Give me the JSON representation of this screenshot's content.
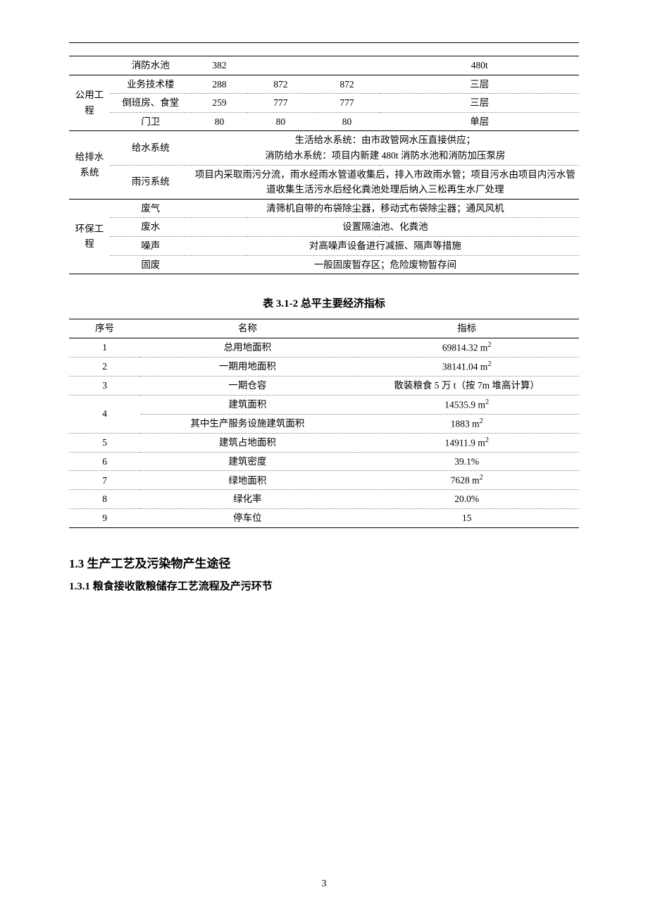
{
  "table1": {
    "rows": [
      {
        "cat": "",
        "catRowspan": 1,
        "name": "消防水池",
        "v1": "382",
        "v2": "",
        "v3": "",
        "desc": "480t",
        "groupTop": false,
        "lastInGroup": true
      },
      {
        "cat": "公用工程",
        "catRowspan": 3,
        "name": "业务技术楼",
        "v1": "288",
        "v2": "872",
        "v3": "872",
        "desc": "三层",
        "groupTop": true,
        "lastInGroup": false
      },
      {
        "cat": null,
        "name": "倒班房、食堂",
        "v1": "259",
        "v2": "777",
        "v3": "777",
        "desc": "三层",
        "groupTop": false,
        "lastInGroup": false
      },
      {
        "cat": null,
        "name": "门卫",
        "v1": "80",
        "v2": "80",
        "v3": "80",
        "desc": "单层",
        "groupTop": false,
        "lastInGroup": true
      },
      {
        "cat": "给排水系统",
        "catRowspan": 2,
        "name": "给水系统",
        "span": true,
        "spanText": "生活给水系统：由市政管网水压直接供应；\n消防给水系统：项目内新建 480t 消防水池和消防加压泵房",
        "groupTop": true,
        "lastInGroup": false
      },
      {
        "cat": null,
        "name": "雨污系统",
        "span": true,
        "spanText": "项目内采取雨污分流，雨水经雨水管道收集后，排入市政雨水管；项目污水由项目内污水管道收集生活污水后经化粪池处理后纳入三松再生水厂处理",
        "groupTop": false,
        "lastInGroup": true
      },
      {
        "cat": "环保工程",
        "catRowspan": 4,
        "name": "废气",
        "span": true,
        "spanText": "清筛机自带的布袋除尘器，移动式布袋除尘器；通风风机",
        "groupTop": true,
        "lastInGroup": false
      },
      {
        "cat": null,
        "name": "废水",
        "span": true,
        "spanText": "设置隔油池、化粪池",
        "groupTop": false,
        "lastInGroup": false
      },
      {
        "cat": null,
        "name": "噪声",
        "span": true,
        "spanText": "对高噪声设备进行减振、隔声等措施",
        "groupTop": false,
        "lastInGroup": false
      },
      {
        "cat": null,
        "name": "固废",
        "span": true,
        "spanText": "一般固废暂存区；危险废物暂存间",
        "groupTop": false,
        "lastInGroup": true
      }
    ]
  },
  "table2": {
    "caption": "表 3.1-2    总平主要经济指标",
    "headers": {
      "c1": "序号",
      "c2": "名称",
      "c3": "指标"
    },
    "rows": [
      {
        "n": "1",
        "name": "总用地面积",
        "val": "69814.32 m²",
        "sup": true
      },
      {
        "n": "2",
        "name": "一期用地面积",
        "val": "38141.04 m²",
        "sup": true
      },
      {
        "n": "3",
        "name": "一期仓容",
        "val": "散装粮食 5 万 t（按 7m 堆高计算）",
        "sup": false
      },
      {
        "n": "4",
        "rowspan": 2,
        "name": "建筑面积",
        "val": "14535.9 m²",
        "sup": true
      },
      {
        "n": null,
        "name": "其中生产服务设施建筑面积",
        "val": "1883  m²",
        "sup": true
      },
      {
        "n": "5",
        "name": "建筑占地面积",
        "val": "14911.9 m²",
        "sup": true
      },
      {
        "n": "6",
        "name": "建筑密度",
        "val": "39.1%",
        "sup": false
      },
      {
        "n": "7",
        "name": "绿地面积",
        "val": "7628  m²",
        "sup": true
      },
      {
        "n": "8",
        "name": "绿化率",
        "val": "20.0%",
        "sup": false
      },
      {
        "n": "9",
        "name": "停车位",
        "val": "15",
        "sup": false
      }
    ]
  },
  "headings": {
    "section": "1.3  生产工艺及污染物产生途径",
    "subsection": "1.3.1 粮食接收散粮储存工艺流程及产污环节"
  },
  "pageNumber": "3"
}
